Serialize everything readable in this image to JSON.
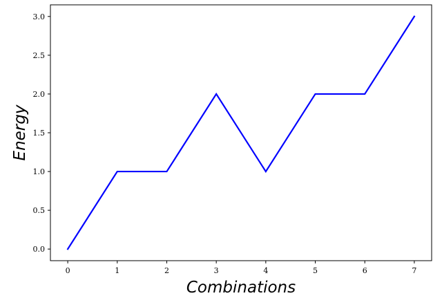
{
  "chart_data": {
    "type": "line",
    "title": "",
    "xlabel": "Combinations",
    "ylabel": "Energy",
    "x": [
      0,
      1,
      2,
      3,
      4,
      5,
      6,
      7
    ],
    "x_ticks": [
      "0",
      "1",
      "2",
      "3",
      "4",
      "5",
      "6",
      "7"
    ],
    "y_ticks": [
      "0.0",
      "0.5",
      "1.0",
      "1.5",
      "2.0",
      "2.5",
      "3.0"
    ],
    "xlim": [
      -0.35,
      7.35
    ],
    "ylim": [
      -0.15,
      3.15
    ],
    "grid": false,
    "series": [
      {
        "values": [
          0,
          1,
          1,
          2,
          1,
          2,
          2,
          3
        ],
        "color": "#0000ff"
      }
    ]
  }
}
